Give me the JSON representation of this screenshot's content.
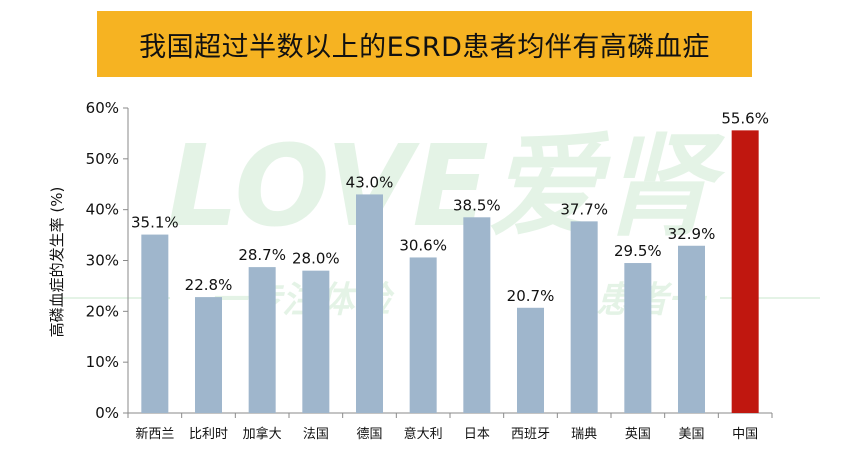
{
  "title": "我国超过半数以上的ESRD患者均伴有高磷血症",
  "watermark": {
    "main": "LOVE爱肾",
    "sub_left": "一专注体验",
    "sub_right": "患者一"
  },
  "chart_data": {
    "type": "bar",
    "title": "我国超过半数以上的ESRD患者均伴有高磷血症",
    "xlabel": "",
    "ylabel": "高磷血症的发生率 (%)",
    "ylim": [
      0,
      60
    ],
    "yticks": [
      "0%",
      "10%",
      "20%",
      "30%",
      "40%",
      "50%",
      "60%"
    ],
    "grid": false,
    "categories": [
      "新西兰",
      "比利时",
      "加拿大",
      "法国",
      "德国",
      "意大利",
      "日本",
      "西班牙",
      "瑞典",
      "英国",
      "美国",
      "中国"
    ],
    "values": [
      35.1,
      22.8,
      28.7,
      28.0,
      43.0,
      30.6,
      38.5,
      20.7,
      37.7,
      29.5,
      32.9,
      55.6
    ],
    "data_labels": [
      "35.1%",
      "22.8%",
      "28.7%",
      "28.0%",
      "43.0%",
      "30.6%",
      "38.5%",
      "20.7%",
      "37.7%",
      "29.5%",
      "32.9%",
      "55.6%"
    ],
    "colors": {
      "default_bar": "#9fb6cc",
      "highlight_bar": "#c0170f",
      "highlight_category": "中国",
      "title_background": "#f6b322"
    }
  }
}
